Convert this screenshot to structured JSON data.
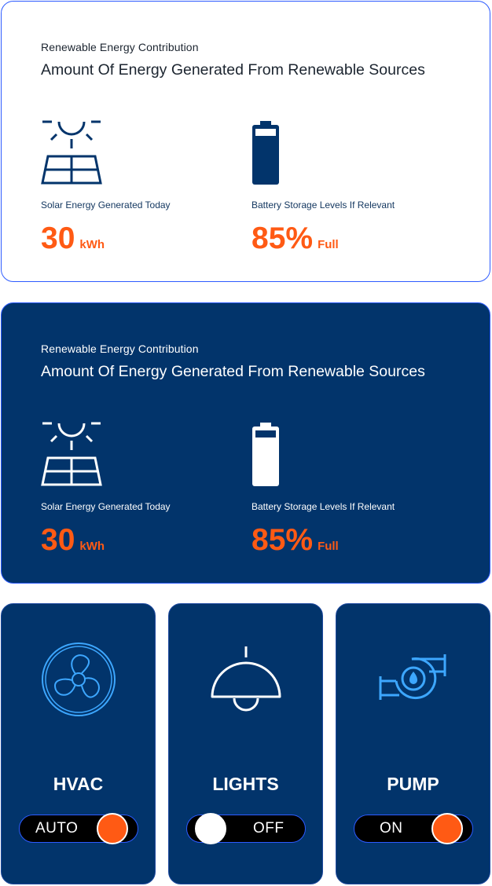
{
  "cards": [
    {
      "subtitle": "Renewable Energy Contribution",
      "title": "Amount Of Energy Generated From Renewable Sources",
      "solar": {
        "label": "Solar Energy Generated Today",
        "value": "30",
        "unit": "kWh",
        "icon": "solar-panel-icon"
      },
      "battery": {
        "label": "Battery Storage Levels If Relevant",
        "value": "85%",
        "unit": "Full",
        "icon": "battery-icon"
      }
    },
    {
      "subtitle": "Renewable Energy Contribution",
      "title": "Amount Of Energy Generated From Renewable Sources",
      "solar": {
        "label": "Solar Energy Generated Today",
        "value": "30",
        "unit": "kWh",
        "icon": "solar-panel-icon"
      },
      "battery": {
        "label": "Battery Storage Levels If Relevant",
        "value": "85%",
        "unit": "Full",
        "icon": "battery-icon"
      }
    }
  ],
  "devices": [
    {
      "name": "HVAC",
      "state": "AUTO",
      "icon": "fan-icon",
      "knob_color": "#ff5a14"
    },
    {
      "name": "LIGHTS",
      "state": "OFF",
      "icon": "lamp-icon",
      "knob_color": "#ffffff"
    },
    {
      "name": "PUMP",
      "state": "ON",
      "icon": "pump-icon",
      "knob_color": "#ff5a14"
    }
  ],
  "colors": {
    "navy": "#02346b",
    "accent": "#ff5a14",
    "border": "#2d5bff",
    "icon_blue": "#3da7ff"
  }
}
